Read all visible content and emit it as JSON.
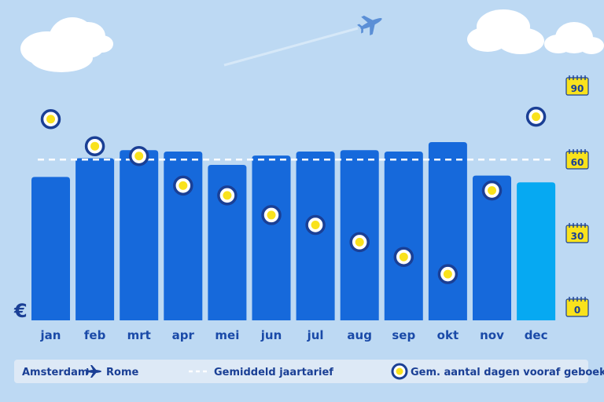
{
  "chart_data": {
    "type": "bar",
    "categories": [
      "jan",
      "feb",
      "mrt",
      "apr",
      "mei",
      "jun",
      "jul",
      "aug",
      "sep",
      "okt",
      "nov",
      "dec"
    ],
    "series": [
      {
        "values": [
          107,
          121,
          127,
          126,
          116,
          123,
          126,
          127,
          126,
          133,
          108,
          103
        ],
        "highlight_index": 11
      }
    ],
    "average": 120,
    "days_booked": {
      "values": [
        77,
        66,
        62,
        50,
        46,
        38,
        34,
        27,
        21,
        14,
        48,
        78
      ],
      "axis_ticks": [
        "90",
        "60",
        "30",
        "0"
      ],
      "axis_range": [
        0,
        90
      ]
    },
    "currency_symbol": "€",
    "legend": {
      "route": {
        "from": "Amsterdam",
        "to": "Rome"
      },
      "average_label": "Gemiddeld jaartarief",
      "days_label": "Gem. aantal dagen vooraf geboekt"
    },
    "colors": {
      "bar": "#1669db",
      "bar_highlight": "#06a9f2",
      "dashed_line": "#ffffff",
      "marker_ring": "#1a3f95",
      "marker_center": "#f9e21c",
      "calendar": "#f9e21c",
      "text": "#1a3f95",
      "background": "#bdd9f3"
    }
  }
}
